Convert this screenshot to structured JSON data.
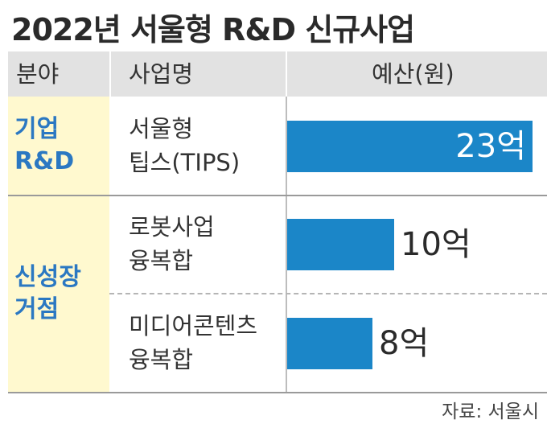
{
  "title": "2022년 서울형 R&D 신규사업",
  "headers": {
    "category": "분야",
    "name": "사업명",
    "budget": "예산(원)"
  },
  "categories": [
    {
      "lines": [
        "기업",
        "R&D"
      ]
    },
    {
      "lines": [
        "신성장",
        "거점"
      ]
    }
  ],
  "rows": [
    {
      "name_lines": [
        "서울형",
        "팁스(TIPS)"
      ],
      "label": "23억"
    },
    {
      "name_lines": [
        "로봇사업",
        "융복합"
      ],
      "label": "10억"
    },
    {
      "name_lines": [
        "미디어콘텐츠",
        "융복합"
      ],
      "label": "8억"
    }
  ],
  "source": "자료: 서울시",
  "colors": {
    "bar": "#1b86c8",
    "category_text": "#2b78c2",
    "category_bg": "#fff9cf",
    "header_bg": "#e2e2e2"
  },
  "chart_data": {
    "type": "bar",
    "orientation": "horizontal",
    "title": "2022년 서울형 R&D 신규사업",
    "categories": [
      "서울형 팁스(TIPS)",
      "로봇사업 융복합",
      "미디어콘텐츠 융복합"
    ],
    "groups": [
      "기업 R&D",
      "신성장 거점",
      "신성장 거점"
    ],
    "values": [
      23,
      10,
      8
    ],
    "unit": "억",
    "xlabel": "예산(원)",
    "ylabel": "",
    "xlim": [
      0,
      23
    ],
    "grid": false,
    "legend": "none"
  }
}
